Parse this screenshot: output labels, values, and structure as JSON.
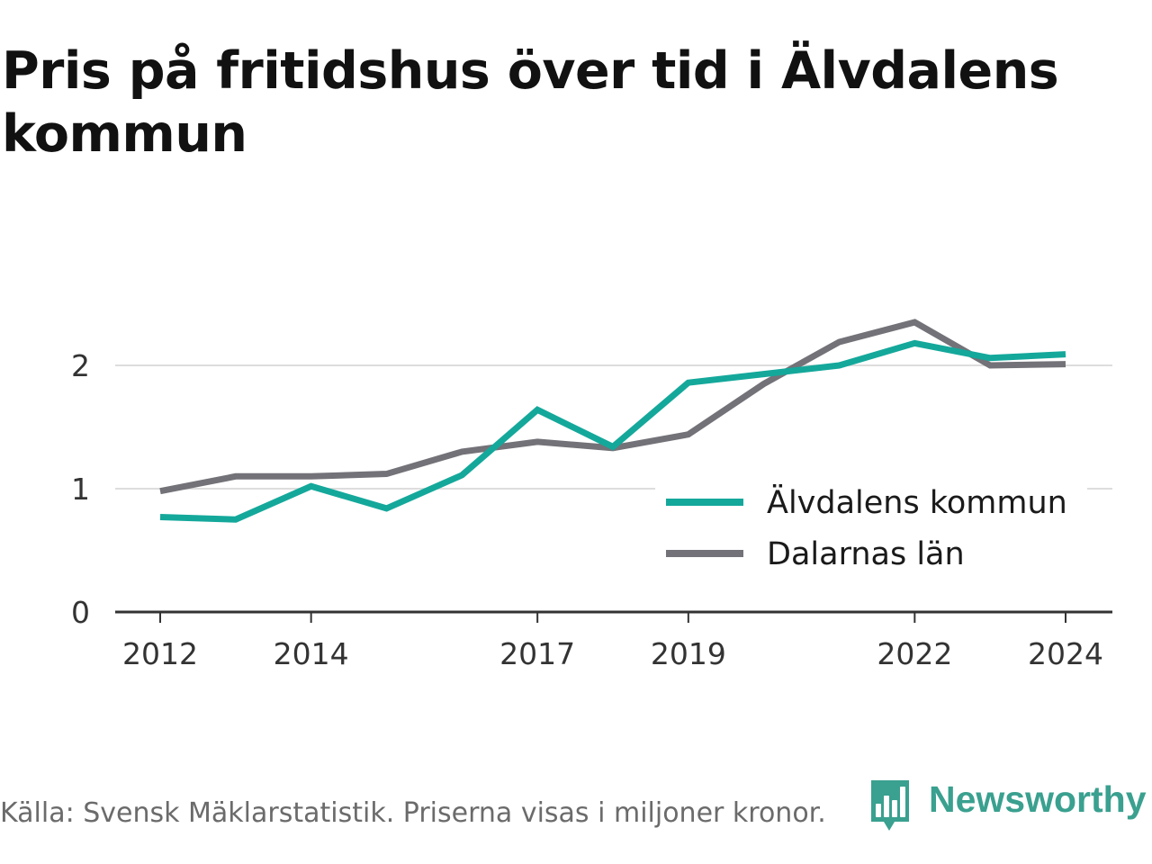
{
  "title": "Pris på fritidshus över tid i Älvdalens kommun",
  "footer": {
    "source": "Källa: Svensk Mäklarstatistik. Priserna visas i miljoner kronor.",
    "brand": "Newsworthy",
    "brand_icon": "newsworthy-logo-icon"
  },
  "colors": {
    "alvdalen": "#14a89b",
    "dalarna": "#737278",
    "grid": "#dddddd",
    "axis": "#333333",
    "brand": "#3aa08f"
  },
  "chart_data": {
    "type": "line",
    "x": [
      2012,
      2013,
      2014,
      2015,
      2016,
      2017,
      2018,
      2019,
      2020,
      2021,
      2022,
      2023,
      2024
    ],
    "x_ticks": [
      "2012",
      "2014",
      "2017",
      "2019",
      "2022",
      "2024"
    ],
    "y_ticks": [
      "0",
      "1",
      "2"
    ],
    "ylim": [
      0,
      2.5
    ],
    "grid": true,
    "legend_position": "bottom-right",
    "series": [
      {
        "name": "Älvdalens kommun",
        "color": "#14a89b",
        "values": [
          0.77,
          0.75,
          1.02,
          0.84,
          1.11,
          1.64,
          1.34,
          1.86,
          1.93,
          2.0,
          2.18,
          2.06,
          2.09
        ]
      },
      {
        "name": "Dalarnas län",
        "color": "#737278",
        "values": [
          0.98,
          1.1,
          1.1,
          1.12,
          1.3,
          1.38,
          1.33,
          1.44,
          1.85,
          2.19,
          2.35,
          2.0,
          2.01
        ]
      }
    ]
  }
}
